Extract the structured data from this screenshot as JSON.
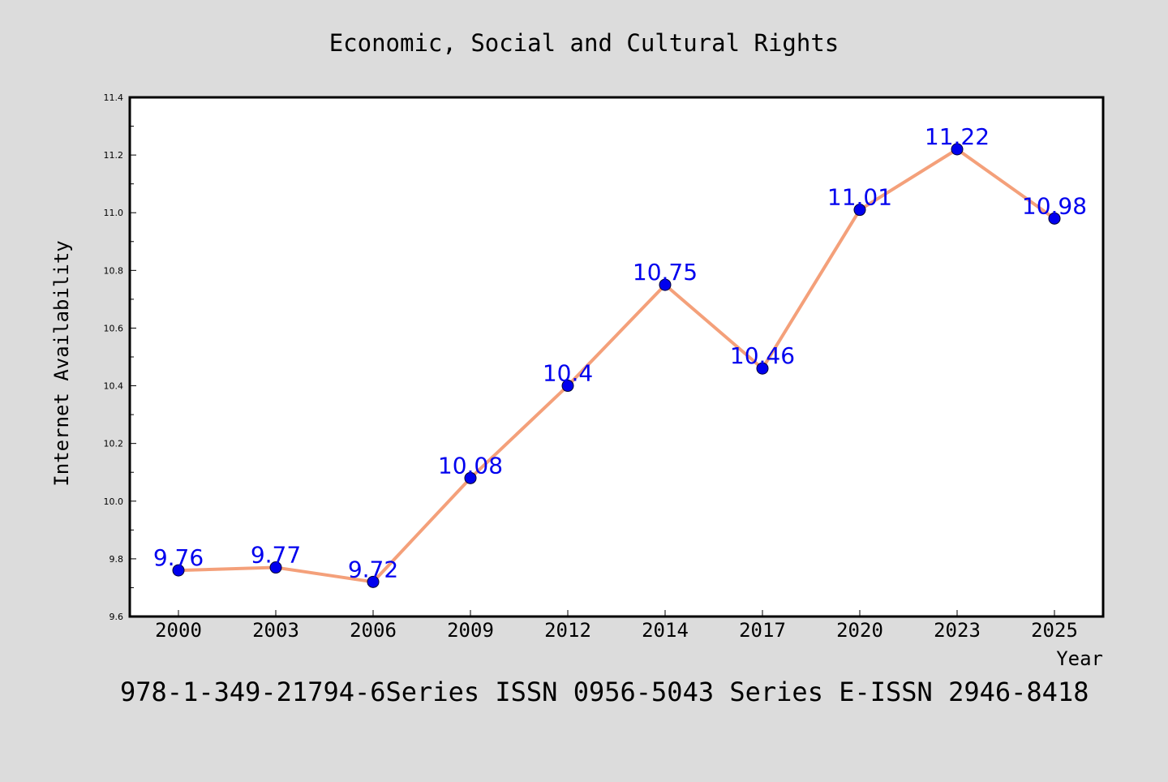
{
  "chart_data": {
    "type": "line",
    "title": "Economic, Social and Cultural Rights",
    "xlabel": "Year",
    "ylabel": "Internet Availability",
    "footer": "978-1-349-21794-6Series ISSN 0956-5043 Series E-ISSN 2946-8418",
    "categories": [
      "2000",
      "2003",
      "2006",
      "2009",
      "2012",
      "2014",
      "2017",
      "2020",
      "2023",
      "2025"
    ],
    "series": [
      {
        "values": [
          9.76,
          9.77,
          9.72,
          10.08,
          10.4,
          10.75,
          10.46,
          11.01,
          11.22,
          10.98
        ],
        "data_labels": [
          "9.76",
          "9.77",
          "9.72",
          "10.08",
          "10.4",
          "10.75",
          "10.46",
          "11.01",
          "11.22",
          "10.98"
        ],
        "line_color": "#f4a07a",
        "marker_color": "#0000ee",
        "label_color": "#0000ee"
      }
    ],
    "ylim": [
      9.6,
      11.4
    ],
    "yticks": [
      "9.6",
      "9.8",
      "10.0",
      "10.2",
      "10.4",
      "10.6",
      "10.8",
      "11.0",
      "11.2",
      "11.4"
    ],
    "grid": false,
    "background": "#dcdcdc",
    "plot_background": "#ffffff"
  }
}
